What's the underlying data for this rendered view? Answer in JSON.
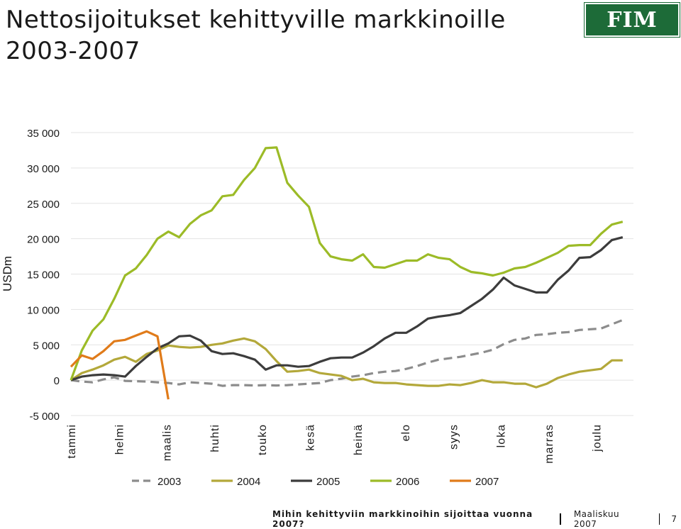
{
  "header": {
    "title": "Nettosijoitukset kehittyville markkinoille 2003-2007",
    "logo_text": "FIM"
  },
  "footer": {
    "question": "Mihin kehittyviin markkinoihin sijoittaa vuonna 2007?",
    "date": "Maaliskuu 2007",
    "page_number": "7"
  },
  "chart_data": {
    "type": "line",
    "title": "",
    "xlabel": "",
    "ylabel": "USDm",
    "ylim": [
      -5000,
      35000
    ],
    "yticks": [
      35000,
      30000,
      25000,
      20000,
      15000,
      10000,
      5000,
      0,
      -5000
    ],
    "ytick_labels": [
      "35 000",
      "30 000",
      "25 000",
      "20 000",
      "15 000",
      "10 000",
      "5 000",
      "0",
      "-5 000"
    ],
    "x_unit": "week",
    "xlim": [
      0,
      52
    ],
    "month_labels": [
      "tammi",
      "helmi",
      "maalis",
      "huhti",
      "touko",
      "kesä",
      "heinä",
      "elo",
      "syys",
      "loka",
      "marras",
      "joulu"
    ],
    "grid": "horizontal",
    "legend_position": "bottom",
    "colors": {
      "2003": "#8c8c8c",
      "2004": "#b3a83a",
      "2005": "#3c3c3c",
      "2006": "#9cbb27",
      "2007": "#e07b1a"
    },
    "series": [
      {
        "name": "2003",
        "style": "dashed",
        "color": "#8c8c8c",
        "values": [
          0,
          -200,
          -300,
          100,
          400,
          -100,
          -150,
          -200,
          -300,
          -400,
          -600,
          -300,
          -400,
          -500,
          -800,
          -700,
          -700,
          -750,
          -700,
          -750,
          -700,
          -600,
          -500,
          -400,
          0,
          200,
          500,
          700,
          1000,
          1200,
          1300,
          1600,
          2000,
          2500,
          2900,
          3100,
          3300,
          3600,
          3900,
          4300,
          5100,
          5700,
          5900,
          6400,
          6500,
          6700,
          6800,
          7100,
          7200,
          7300,
          7900,
          8500
        ]
      },
      {
        "name": "2004",
        "style": "solid",
        "color": "#b3a83a",
        "values": [
          0,
          1000,
          1500,
          2100,
          2900,
          3300,
          2600,
          3700,
          4200,
          4900,
          4700,
          4600,
          4700,
          5000,
          5200,
          5600,
          5900,
          5500,
          4400,
          2700,
          1200,
          1300,
          1500,
          1000,
          800,
          600,
          0,
          200,
          -300,
          -400,
          -400,
          -600,
          -700,
          -800,
          -800,
          -600,
          -700,
          -400,
          0,
          -300,
          -300,
          -500,
          -500,
          -1000,
          -500,
          300,
          800,
          1200,
          1400,
          1600,
          2800,
          2800
        ]
      },
      {
        "name": "2005",
        "style": "solid",
        "color": "#3c3c3c",
        "values": [
          0,
          500,
          700,
          800,
          700,
          500,
          2000,
          3300,
          4500,
          5200,
          6200,
          6300,
          5600,
          4100,
          3700,
          3800,
          3400,
          2900,
          1500,
          2100,
          2100,
          1900,
          2000,
          2600,
          3100,
          3200,
          3200,
          3900,
          4800,
          5900,
          6700,
          6700,
          7600,
          8700,
          9000,
          9200,
          9500,
          10500,
          11500,
          12800,
          14500,
          13400,
          12900,
          12400,
          12400,
          14200,
          15500,
          17300,
          17400,
          18400,
          19800,
          20200
        ]
      },
      {
        "name": "2006",
        "style": "solid",
        "color": "#9cbb27",
        "values": [
          0,
          4200,
          7000,
          8600,
          11500,
          14800,
          15800,
          17700,
          20000,
          21000,
          20200,
          22100,
          23300,
          24000,
          26000,
          26200,
          28300,
          30000,
          32800,
          32900,
          27900,
          26100,
          24500,
          19400,
          17500,
          17100,
          16900,
          17800,
          16000,
          15900,
          16400,
          16900,
          16900,
          17800,
          17300,
          17100,
          16000,
          15300,
          15100,
          14800,
          15200,
          15800,
          16000,
          16600,
          17300,
          18000,
          19000,
          19100,
          19100,
          20700,
          22000,
          22400
        ]
      },
      {
        "name": "2007",
        "style": "solid",
        "color": "#e07b1a",
        "values": [
          1900,
          3500,
          3000,
          4100,
          5500,
          5700,
          6300,
          6900,
          6200,
          -2700
        ]
      }
    ]
  }
}
